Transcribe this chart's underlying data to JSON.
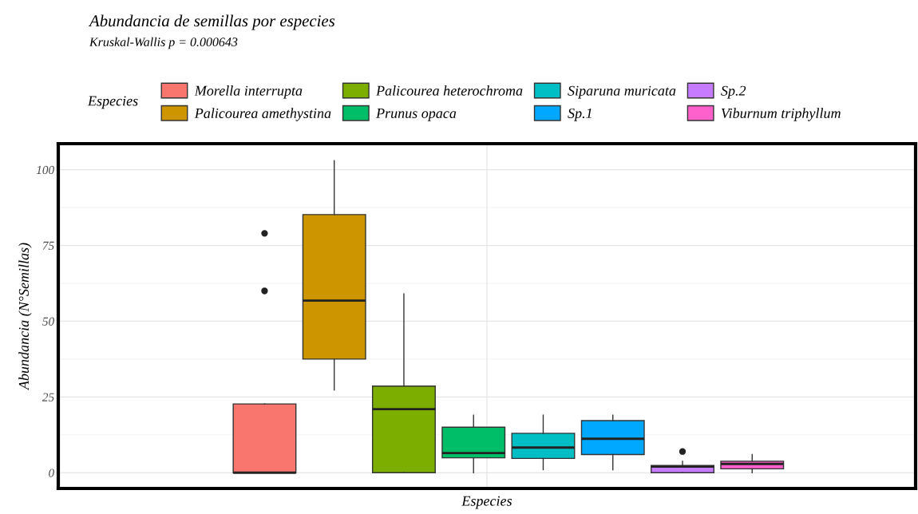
{
  "chart_data": {
    "type": "box",
    "title": "Abundancia de semillas por especies",
    "subtitle": "Kruskal-Wallis p = 0.000643",
    "xlabel": "Especies",
    "ylabel": "Abundancia (N°Semillas)",
    "legend_title": "Especies",
    "legend": "top",
    "grid": true,
    "categories": [
      null
    ],
    "ylim": [
      -5.2,
      108.6
    ],
    "yticks": [
      0,
      25,
      50,
      75,
      100
    ],
    "series": [
      {
        "name": "Morella interrupta",
        "color": "#f8766d",
        "boxes": [
          {
            "low": 0,
            "q1": 0,
            "median": 0,
            "q3": 22.7,
            "high": 22.7,
            "outliers": [
              60,
              79
            ]
          }
        ]
      },
      {
        "name": "Palicourea amethystina",
        "color": "#cd9600",
        "boxes": [
          {
            "low": 27.3,
            "q1": 37.5,
            "median": 56.8,
            "q3": 85.2,
            "high": 103
          }
        ]
      },
      {
        "name": "Palicourea heterochroma",
        "color": "#7cae00",
        "boxes": [
          {
            "low": 0,
            "q1": 0,
            "median": 21,
            "q3": 28.6,
            "high": 59
          }
        ]
      },
      {
        "name": "Prunus opaca",
        "color": "#00be67",
        "boxes": [
          {
            "low": 0,
            "q1": 4.9,
            "median": 6.5,
            "q3": 15,
            "high": 19
          }
        ]
      },
      {
        "name": "Siparuna muricata",
        "color": "#00bfc4",
        "boxes": [
          {
            "low": 1,
            "q1": 4.7,
            "median": 8.3,
            "q3": 13,
            "high": 19
          }
        ]
      },
      {
        "name": "Sp.1",
        "color": "#00a9ff",
        "boxes": [
          {
            "low": 1,
            "q1": 6,
            "median": 11.2,
            "q3": 17.2,
            "high": 19
          }
        ]
      },
      {
        "name": "Sp.2",
        "color": "#c77cff",
        "boxes": [
          {
            "low": 0,
            "q1": 0,
            "median": 2,
            "q3": 2.4,
            "high": 3.8,
            "outliers": [
              7
            ]
          }
        ]
      },
      {
        "name": "Viburnum triphyllum",
        "color": "#ff61cc",
        "boxes": [
          {
            "low": 0,
            "q1": 1.3,
            "median": 2.9,
            "q3": 3.8,
            "high": 6
          }
        ]
      }
    ]
  }
}
